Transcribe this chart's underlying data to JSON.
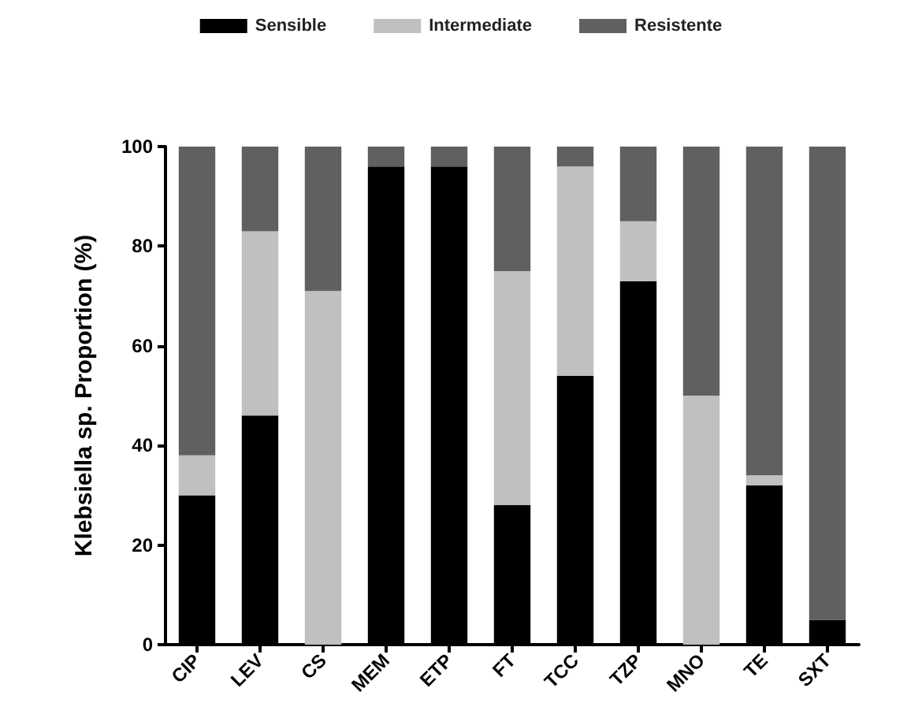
{
  "chart_data": {
    "type": "bar",
    "stacked": true,
    "ylabel": "Klebsiella sp. Proportion (%)",
    "categories": [
      "CIP",
      "LEV",
      "CS",
      "MEM",
      "ETP",
      "FT",
      "TCC",
      "TZP",
      "MNO",
      "TE",
      "SXT"
    ],
    "series": [
      {
        "name": "Sensible",
        "color": "#000000",
        "values": [
          30,
          46,
          0,
          96,
          96,
          28,
          54,
          73,
          0,
          32,
          5
        ]
      },
      {
        "name": "Intermediate",
        "color": "#c0c0c0",
        "values": [
          8,
          37,
          71,
          0,
          0,
          47,
          42,
          12,
          50,
          2,
          0
        ]
      },
      {
        "name": "Resistente",
        "color": "#606060",
        "values": [
          62,
          17,
          29,
          4,
          4,
          25,
          4,
          15,
          50,
          66,
          95
        ]
      }
    ],
    "ylim": [
      0,
      100
    ],
    "yticks": [
      0,
      20,
      40,
      60,
      80,
      100
    ],
    "grid": false,
    "legend": "top"
  }
}
